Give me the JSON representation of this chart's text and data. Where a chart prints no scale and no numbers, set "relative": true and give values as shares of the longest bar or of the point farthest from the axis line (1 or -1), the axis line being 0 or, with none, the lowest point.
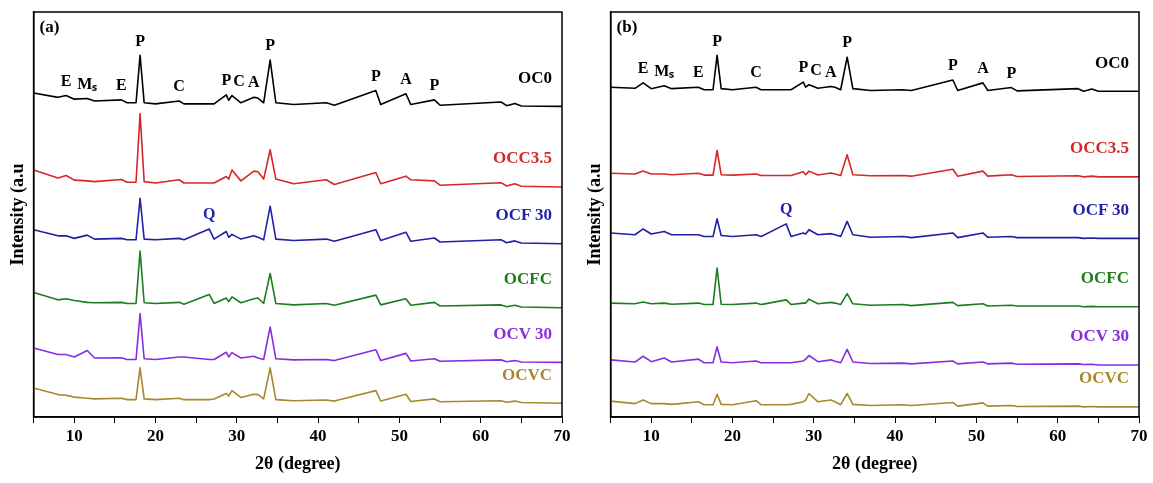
{
  "chart_data": [
    {
      "type": "line",
      "title": "(a)",
      "xlabel": "2θ (degree)",
      "ylabel": "Intensity (a.u",
      "relative": true,
      "legend": false,
      "grid": false,
      "marker": "none",
      "tick_labels": "x",
      "xlim": [
        5,
        70
      ],
      "xticks": [
        {
          "value": 5,
          "label": null
        },
        10,
        {
          "value": 15,
          "label": null
        },
        20,
        {
          "value": 25,
          "label": null
        },
        30,
        {
          "value": 35,
          "label": null
        },
        40,
        {
          "value": 45,
          "label": null
        },
        50,
        {
          "value": 55,
          "label": null
        },
        60,
        {
          "value": 65,
          "label": null
        },
        70
      ],
      "x": [
        5,
        8,
        9,
        10,
        11.6,
        12.5,
        15.8,
        16.5,
        17.6,
        18.1,
        18.6,
        20,
        22.9,
        23.5,
        26.6,
        27.2,
        28.7,
        29.0,
        29.4,
        30.5,
        32.1,
        32.6,
        33.3,
        34.1,
        34.8,
        37,
        41,
        42,
        47.1,
        47.7,
        50.8,
        51.4,
        54.3,
        55,
        62.5,
        63.2,
        64.2,
        65,
        70
      ],
      "series": [
        {
          "name": "OC0",
          "color": "#000000",
          "values": [
            0.896,
            0.884,
            0.889,
            0.879,
            0.881,
            0.874,
            0.877,
            0.869,
            0.869,
            1,
            0.869,
            0.866,
            0.874,
            0.866,
            0.866,
            0.866,
            0.891,
            0.876,
            0.889,
            0.869,
            0.884,
            0.882,
            0.869,
            0.987,
            0.869,
            0.864,
            0.869,
            0.862,
            0.903,
            0.864,
            0.894,
            0.864,
            0.877,
            0.862,
            0.871,
            0.861,
            0.867,
            0.86,
            0.859
          ]
        },
        {
          "name": "OCC3.5",
          "color": "#d62728",
          "values": [
            0.683,
            0.661,
            0.668,
            0.655,
            0.653,
            0.651,
            0.657,
            0.649,
            0.649,
            0.839,
            0.651,
            0.647,
            0.656,
            0.647,
            0.647,
            0.647,
            0.665,
            0.658,
            0.683,
            0.653,
            0.68,
            0.678,
            0.658,
            0.739,
            0.658,
            0.645,
            0.656,
            0.643,
            0.676,
            0.645,
            0.666,
            0.656,
            0.653,
            0.641,
            0.648,
            0.639,
            0.645,
            0.638,
            0.636
          ]
        },
        {
          "name": "OCF 30",
          "color": "#1f1fa8",
          "values": [
            0.518,
            0.501,
            0.501,
            0.494,
            0.503,
            0.492,
            0.494,
            0.49,
            0.49,
            0.605,
            0.492,
            0.49,
            0.494,
            0.49,
            0.52,
            0.492,
            0.513,
            0.497,
            0.505,
            0.492,
            0.501,
            0.497,
            0.49,
            0.583,
            0.492,
            0.488,
            0.492,
            0.486,
            0.518,
            0.488,
            0.511,
            0.486,
            0.495,
            0.484,
            0.49,
            0.482,
            0.487,
            0.481,
            0.479
          ]
        },
        {
          "name": "OCFC",
          "color": "#1e7b1e",
          "values": [
            0.344,
            0.324,
            0.327,
            0.322,
            0.317,
            0.316,
            0.317,
            0.314,
            0.314,
            0.459,
            0.316,
            0.314,
            0.317,
            0.312,
            0.339,
            0.314,
            0.329,
            0.319,
            0.332,
            0.316,
            0.327,
            0.329,
            0.314,
            0.397,
            0.314,
            0.31,
            0.314,
            0.309,
            0.337,
            0.31,
            0.327,
            0.309,
            0.317,
            0.307,
            0.31,
            0.305,
            0.309,
            0.304,
            0.302
          ]
        },
        {
          "name": "OCV 30",
          "color": "#8a2be2",
          "values": [
            0.191,
            0.173,
            0.173,
            0.166,
            0.184,
            0.163,
            0.164,
            0.159,
            0.159,
            0.286,
            0.161,
            0.159,
            0.166,
            0.166,
            0.159,
            0.159,
            0.179,
            0.166,
            0.178,
            0.163,
            0.168,
            0.163,
            0.159,
            0.249,
            0.161,
            0.158,
            0.159,
            0.156,
            0.186,
            0.156,
            0.176,
            0.155,
            0.161,
            0.154,
            0.158,
            0.153,
            0.156,
            0.152,
            0.151
          ]
        },
        {
          "name": "OCVC",
          "color": "#a8872e",
          "values": [
            0.08,
            0.062,
            0.06,
            0.055,
            0.052,
            0.05,
            0.052,
            0.048,
            0.048,
            0.136,
            0.05,
            0.048,
            0.052,
            0.048,
            0.048,
            0.05,
            0.065,
            0.058,
            0.073,
            0.054,
            0.063,
            0.062,
            0.05,
            0.136,
            0.048,
            0.045,
            0.047,
            0.044,
            0.073,
            0.044,
            0.063,
            0.043,
            0.05,
            0.042,
            0.045,
            0.041,
            0.044,
            0.04,
            0.038
          ]
        }
      ],
      "annotations": [
        {
          "text": "E",
          "x": 9,
          "y": 0.889
        },
        {
          "text": "Mₛ",
          "x": 11.6,
          "y": 0.881
        },
        {
          "text": "E",
          "x": 15.8,
          "y": 0.877
        },
        {
          "text": "P",
          "x": 18.1,
          "y": 1
        },
        {
          "text": "C",
          "x": 22.9,
          "y": 0.874
        },
        {
          "text": "P",
          "x": 28.7,
          "y": 0.891
        },
        {
          "text": "C",
          "x": 29.4,
          "y": 0.889
        },
        {
          "text": "A",
          "x": 32.1,
          "y": 0.884
        },
        {
          "text": "P",
          "x": 34.1,
          "y": 0.987
        },
        {
          "text": "P",
          "x": 47.1,
          "y": 0.903
        },
        {
          "text": "A",
          "x": 50.8,
          "y": 0.894
        },
        {
          "text": "P",
          "x": 54.3,
          "y": 0.877
        },
        {
          "text": "Q",
          "x": 26.6,
          "y": 0.52
        }
      ]
    },
    {
      "type": "line",
      "title": "(b)",
      "xlabel": "2θ (degree)",
      "ylabel": "Intensity (a.u",
      "relative": true,
      "legend": false,
      "grid": false,
      "marker": "none",
      "tick_labels": "x",
      "xlim": [
        5,
        70
      ],
      "xticks": [
        {
          "value": 5,
          "label": null
        },
        10,
        {
          "value": 15,
          "label": null
        },
        20,
        {
          "value": 25,
          "label": null
        },
        30,
        {
          "value": 35,
          "label": null
        },
        40,
        {
          "value": 45,
          "label": null
        },
        50,
        {
          "value": 55,
          "label": null
        },
        60,
        {
          "value": 65,
          "label": null
        },
        70
      ],
      "x": [
        5,
        8,
        9,
        10,
        11.6,
        12.5,
        15.8,
        16.5,
        17.6,
        18.1,
        18.6,
        20,
        22.9,
        23.5,
        26.6,
        27.2,
        28.7,
        29.0,
        29.4,
        30.5,
        32.1,
        32.6,
        33.3,
        34.1,
        34.8,
        37,
        41,
        42,
        47.1,
        47.7,
        50.8,
        51.4,
        54.3,
        55,
        62.5,
        63.2,
        64.2,
        65,
        70
      ],
      "series": [
        {
          "name": "OC0",
          "color": "#000000",
          "values": [
            0.912,
            0.909,
            0.924,
            0.908,
            0.916,
            0.908,
            0.912,
            0.905,
            0.905,
            1,
            0.908,
            0.905,
            0.912,
            0.905,
            0.905,
            0.905,
            0.926,
            0.912,
            0.919,
            0.909,
            0.914,
            0.912,
            0.905,
            0.995,
            0.908,
            0.903,
            0.905,
            0.903,
            0.932,
            0.903,
            0.924,
            0.903,
            0.911,
            0.902,
            0.908,
            0.901,
            0.907,
            0.901,
            0.901
          ]
        },
        {
          "name": "OCC3.5",
          "color": "#d62728",
          "values": [
            0.674,
            0.672,
            0.68,
            0.672,
            0.672,
            0.67,
            0.674,
            0.669,
            0.669,
            0.737,
            0.67,
            0.669,
            0.672,
            0.668,
            0.668,
            0.668,
            0.678,
            0.67,
            0.68,
            0.669,
            0.675,
            0.672,
            0.668,
            0.725,
            0.67,
            0.667,
            0.668,
            0.666,
            0.685,
            0.666,
            0.68,
            0.666,
            0.67,
            0.665,
            0.667,
            0.664,
            0.666,
            0.664,
            0.664
          ]
        },
        {
          "name": "OCF 30",
          "color": "#1f1fa8",
          "values": [
            0.509,
            0.504,
            0.52,
            0.506,
            0.513,
            0.504,
            0.504,
            0.499,
            0.499,
            0.548,
            0.502,
            0.499,
            0.504,
            0.499,
            0.534,
            0.499,
            0.509,
            0.506,
            0.518,
            0.504,
            0.507,
            0.504,
            0.499,
            0.541,
            0.504,
            0.497,
            0.499,
            0.496,
            0.509,
            0.496,
            0.509,
            0.497,
            0.499,
            0.496,
            0.496,
            0.494,
            0.495,
            0.494,
            0.494
          ]
        },
        {
          "name": "OCFC",
          "color": "#1e7b1e",
          "values": [
            0.315,
            0.313,
            0.318,
            0.313,
            0.315,
            0.312,
            0.315,
            0.311,
            0.311,
            0.412,
            0.312,
            0.311,
            0.315,
            0.311,
            0.324,
            0.311,
            0.315,
            0.315,
            0.326,
            0.313,
            0.317,
            0.315,
            0.311,
            0.341,
            0.313,
            0.309,
            0.311,
            0.308,
            0.317,
            0.308,
            0.313,
            0.307,
            0.309,
            0.307,
            0.307,
            0.305,
            0.306,
            0.305,
            0.305
          ]
        },
        {
          "name": "OCV 30",
          "color": "#8a2be2",
          "values": [
            0.158,
            0.152,
            0.168,
            0.153,
            0.163,
            0.152,
            0.16,
            0.15,
            0.15,
            0.194,
            0.152,
            0.15,
            0.155,
            0.15,
            0.15,
            0.15,
            0.155,
            0.16,
            0.17,
            0.153,
            0.158,
            0.154,
            0.15,
            0.187,
            0.152,
            0.148,
            0.149,
            0.147,
            0.155,
            0.147,
            0.152,
            0.147,
            0.149,
            0.146,
            0.147,
            0.145,
            0.146,
            0.144,
            0.144
          ]
        },
        {
          "name": "OCVC",
          "color": "#a8872e",
          "values": [
            0.044,
            0.037,
            0.047,
            0.037,
            0.037,
            0.035,
            0.042,
            0.034,
            0.034,
            0.063,
            0.035,
            0.034,
            0.045,
            0.034,
            0.034,
            0.035,
            0.042,
            0.047,
            0.065,
            0.042,
            0.047,
            0.042,
            0.034,
            0.065,
            0.035,
            0.032,
            0.034,
            0.032,
            0.04,
            0.03,
            0.039,
            0.03,
            0.032,
            0.029,
            0.03,
            0.028,
            0.029,
            0.028,
            0.028
          ]
        }
      ],
      "annotations": [
        {
          "text": "E",
          "x": 9,
          "y": 0.924
        },
        {
          "text": "Mₛ",
          "x": 11.6,
          "y": 0.916
        },
        {
          "text": "E",
          "x": 15.8,
          "y": 0.912
        },
        {
          "text": "P",
          "x": 18.1,
          "y": 1
        },
        {
          "text": "C",
          "x": 22.9,
          "y": 0.912
        },
        {
          "text": "P",
          "x": 28.7,
          "y": 0.926
        },
        {
          "text": "C",
          "x": 29.4,
          "y": 0.919
        },
        {
          "text": "A",
          "x": 32.1,
          "y": 0.914
        },
        {
          "text": "P",
          "x": 34.1,
          "y": 0.995
        },
        {
          "text": "P",
          "x": 47.1,
          "y": 0.932
        },
        {
          "text": "A",
          "x": 50.8,
          "y": 0.924
        },
        {
          "text": "P",
          "x": 54.3,
          "y": 0.911
        },
        {
          "text": "Q",
          "x": 26.6,
          "y": 0.534
        }
      ]
    }
  ]
}
